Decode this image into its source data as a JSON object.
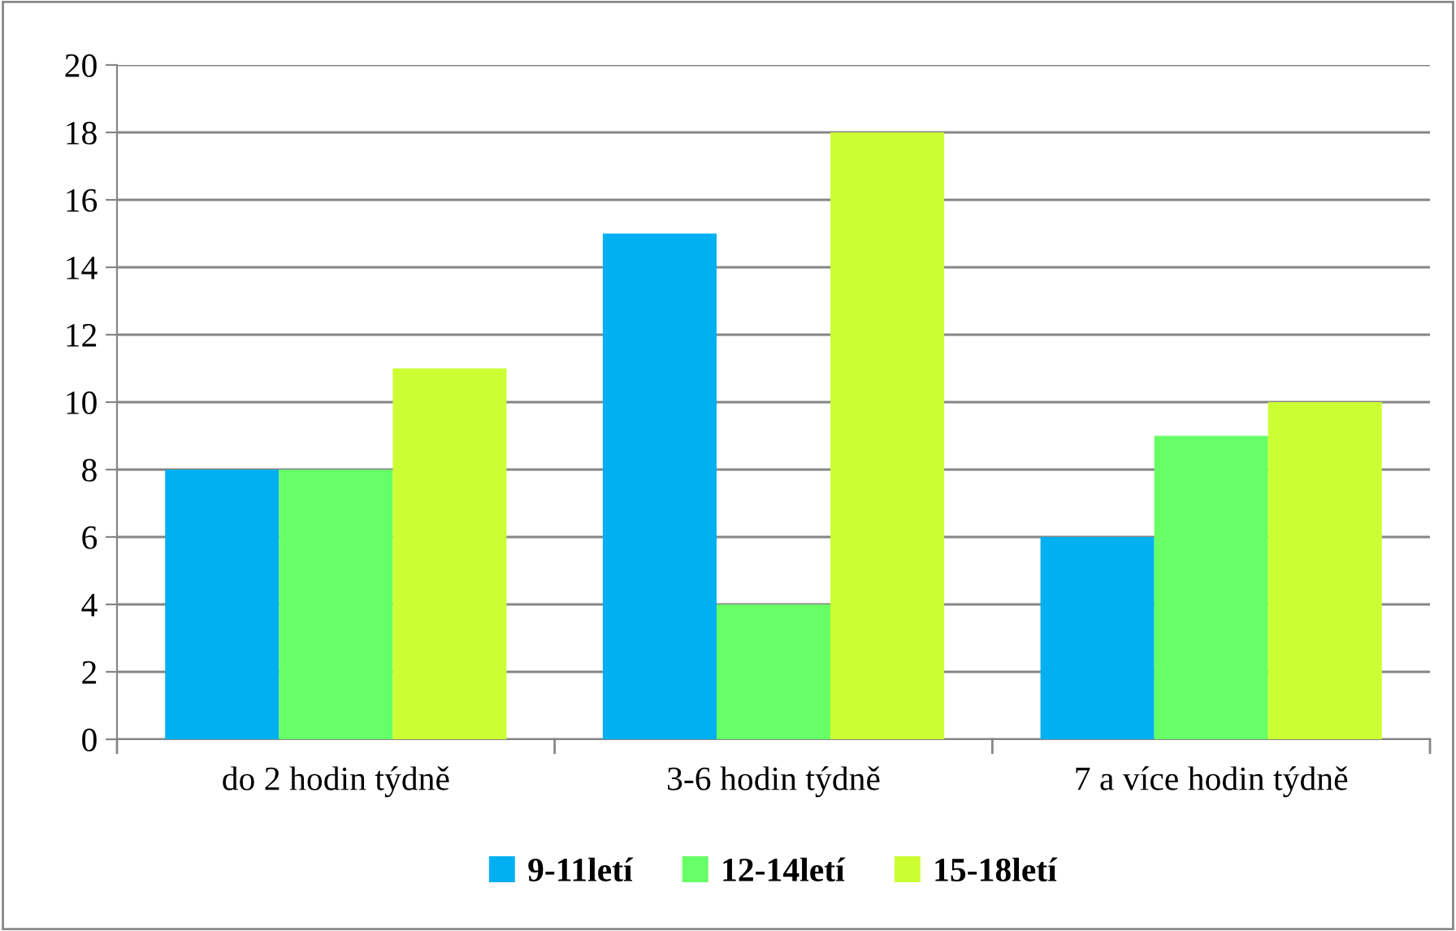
{
  "chart_data": {
    "type": "bar",
    "categories": [
      "do 2 hodin týdně",
      "3-6 hodin týdně",
      "7 a více hodin týdně"
    ],
    "series": [
      {
        "name": "9-11letí",
        "color": "#00b0f0",
        "values": [
          8,
          15,
          6
        ]
      },
      {
        "name": "12-14letí",
        "color": "#66ff66",
        "values": [
          8,
          4,
          9
        ]
      },
      {
        "name": "15-18letí",
        "color": "#ccff33",
        "values": [
          11,
          18,
          10
        ]
      }
    ],
    "ylim": [
      0,
      20
    ],
    "yticks": [
      0,
      2,
      4,
      6,
      8,
      10,
      12,
      14,
      16,
      18,
      20
    ],
    "grid": "y",
    "legend": "bottom"
  }
}
